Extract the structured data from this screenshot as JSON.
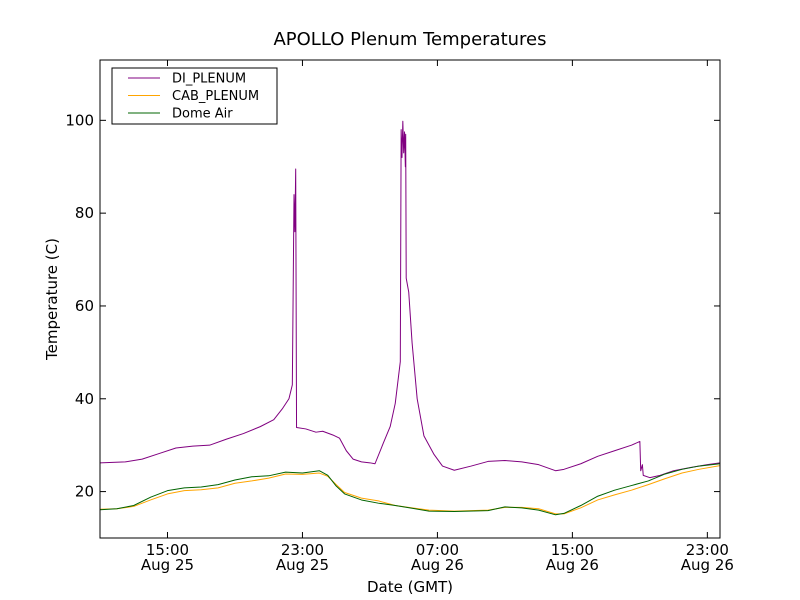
{
  "chart_data": {
    "type": "line",
    "title": "APOLLO Plenum Temperatures",
    "xlabel": "Date (GMT)",
    "ylabel": "Temperature (C)",
    "xlim": [
      11.0,
      47.75
    ],
    "ylim": [
      10,
      113
    ],
    "x_unit": "hours since Aug 25 00:00 GMT",
    "xticks": [
      {
        "x": 15,
        "time": "15:00",
        "date": "Aug 25"
      },
      {
        "x": 23,
        "time": "23:00",
        "date": "Aug 25"
      },
      {
        "x": 31,
        "time": "07:00",
        "date": "Aug 26"
      },
      {
        "x": 39,
        "time": "15:00",
        "date": "Aug 26"
      },
      {
        "x": 47,
        "time": "23:00",
        "date": "Aug 26"
      }
    ],
    "yticks": [
      20,
      40,
      60,
      80,
      100
    ],
    "grid": false,
    "legend_position": "top-left",
    "series": [
      {
        "name": "DI_PLENUM",
        "color": "#800080",
        "points": [
          [
            11.0,
            26.2
          ],
          [
            12.5,
            26.4
          ],
          [
            13.5,
            27.0
          ],
          [
            14.5,
            28.2
          ],
          [
            15.5,
            29.4
          ],
          [
            16.5,
            29.8
          ],
          [
            17.5,
            30.0
          ],
          [
            18.5,
            31.3
          ],
          [
            19.5,
            32.5
          ],
          [
            20.5,
            34.0
          ],
          [
            21.3,
            35.5
          ],
          [
            21.8,
            37.8
          ],
          [
            22.2,
            40.0
          ],
          [
            22.4,
            43.0
          ],
          [
            22.5,
            84.0
          ],
          [
            22.55,
            76.0
          ],
          [
            22.6,
            89.5
          ],
          [
            22.65,
            33.8
          ],
          [
            23.2,
            33.5
          ],
          [
            23.8,
            32.8
          ],
          [
            24.2,
            33.0
          ],
          [
            24.8,
            32.2
          ],
          [
            25.2,
            31.5
          ],
          [
            25.6,
            28.8
          ],
          [
            26.0,
            27.0
          ],
          [
            26.5,
            26.4
          ],
          [
            27.0,
            26.2
          ],
          [
            27.3,
            26.0
          ],
          [
            27.8,
            30.5
          ],
          [
            28.2,
            34.0
          ],
          [
            28.5,
            39.0
          ],
          [
            28.8,
            48.0
          ],
          [
            28.85,
            98.0
          ],
          [
            28.9,
            92.0
          ],
          [
            28.95,
            99.8
          ],
          [
            29.0,
            93.0
          ],
          [
            29.05,
            97.5
          ],
          [
            29.1,
            90.0
          ],
          [
            29.12,
            97.0
          ],
          [
            29.15,
            66.0
          ],
          [
            29.3,
            63.0
          ],
          [
            29.5,
            52.0
          ],
          [
            29.8,
            40.0
          ],
          [
            30.2,
            32.0
          ],
          [
            30.8,
            28.0
          ],
          [
            31.3,
            25.5
          ],
          [
            32.0,
            24.6
          ],
          [
            33.0,
            25.5
          ],
          [
            34.0,
            26.5
          ],
          [
            35.0,
            26.7
          ],
          [
            36.0,
            26.4
          ],
          [
            37.0,
            25.8
          ],
          [
            38.0,
            24.5
          ],
          [
            38.5,
            24.8
          ],
          [
            39.5,
            26.0
          ],
          [
            40.5,
            27.6
          ],
          [
            41.5,
            28.8
          ],
          [
            42.5,
            30.0
          ],
          [
            43.0,
            30.8
          ],
          [
            43.05,
            24.5
          ],
          [
            43.15,
            25.8
          ],
          [
            43.2,
            23.5
          ],
          [
            43.6,
            23.0
          ],
          [
            44.2,
            23.5
          ],
          [
            45.0,
            24.5
          ],
          [
            46.0,
            25.2
          ],
          [
            47.0,
            25.8
          ],
          [
            47.75,
            26.2
          ]
        ]
      },
      {
        "name": "CAB_PLENUM",
        "color": "#ffa500",
        "points": [
          [
            11.0,
            16.2
          ],
          [
            12.0,
            16.3
          ],
          [
            13.0,
            16.8
          ],
          [
            14.0,
            18.2
          ],
          [
            15.0,
            19.5
          ],
          [
            16.0,
            20.2
          ],
          [
            17.0,
            20.4
          ],
          [
            18.0,
            20.8
          ],
          [
            19.0,
            21.8
          ],
          [
            20.0,
            22.3
          ],
          [
            21.0,
            22.9
          ],
          [
            22.0,
            23.8
          ],
          [
            23.0,
            23.7
          ],
          [
            24.0,
            24.0
          ],
          [
            24.5,
            23.3
          ],
          [
            25.0,
            21.5
          ],
          [
            25.5,
            19.8
          ],
          [
            26.5,
            18.6
          ],
          [
            27.5,
            18.0
          ],
          [
            28.5,
            17.0
          ],
          [
            29.5,
            16.5
          ],
          [
            30.5,
            16.0
          ],
          [
            32.0,
            15.8
          ],
          [
            34.0,
            16.0
          ],
          [
            35.0,
            16.6
          ],
          [
            36.0,
            16.6
          ],
          [
            37.0,
            16.3
          ],
          [
            38.0,
            15.2
          ],
          [
            38.5,
            15.2
          ],
          [
            39.5,
            16.5
          ],
          [
            40.5,
            18.2
          ],
          [
            41.5,
            19.3
          ],
          [
            42.5,
            20.3
          ],
          [
            43.5,
            21.5
          ],
          [
            44.5,
            22.8
          ],
          [
            45.5,
            24.0
          ],
          [
            46.5,
            24.8
          ],
          [
            47.75,
            25.6
          ]
        ]
      },
      {
        "name": "Dome Air",
        "color": "#006400",
        "points": [
          [
            11.0,
            16.1
          ],
          [
            12.0,
            16.3
          ],
          [
            13.0,
            17.0
          ],
          [
            14.0,
            18.8
          ],
          [
            15.0,
            20.2
          ],
          [
            16.0,
            20.8
          ],
          [
            17.0,
            21.0
          ],
          [
            18.0,
            21.5
          ],
          [
            19.0,
            22.5
          ],
          [
            20.0,
            23.2
          ],
          [
            21.0,
            23.4
          ],
          [
            22.0,
            24.2
          ],
          [
            23.0,
            24.0
          ],
          [
            24.0,
            24.5
          ],
          [
            24.5,
            23.5
          ],
          [
            25.0,
            21.2
          ],
          [
            25.5,
            19.5
          ],
          [
            26.5,
            18.2
          ],
          [
            27.5,
            17.5
          ],
          [
            28.5,
            17.0
          ],
          [
            29.5,
            16.4
          ],
          [
            30.5,
            15.8
          ],
          [
            32.0,
            15.7
          ],
          [
            34.0,
            15.9
          ],
          [
            35.0,
            16.7
          ],
          [
            36.0,
            16.5
          ],
          [
            37.0,
            16.0
          ],
          [
            38.0,
            15.0
          ],
          [
            38.5,
            15.3
          ],
          [
            39.5,
            17.0
          ],
          [
            40.5,
            19.0
          ],
          [
            41.5,
            20.3
          ],
          [
            42.5,
            21.3
          ],
          [
            43.5,
            22.3
          ],
          [
            44.5,
            23.8
          ],
          [
            45.5,
            24.8
          ],
          [
            46.5,
            25.5
          ],
          [
            47.75,
            26.0
          ]
        ]
      }
    ]
  }
}
